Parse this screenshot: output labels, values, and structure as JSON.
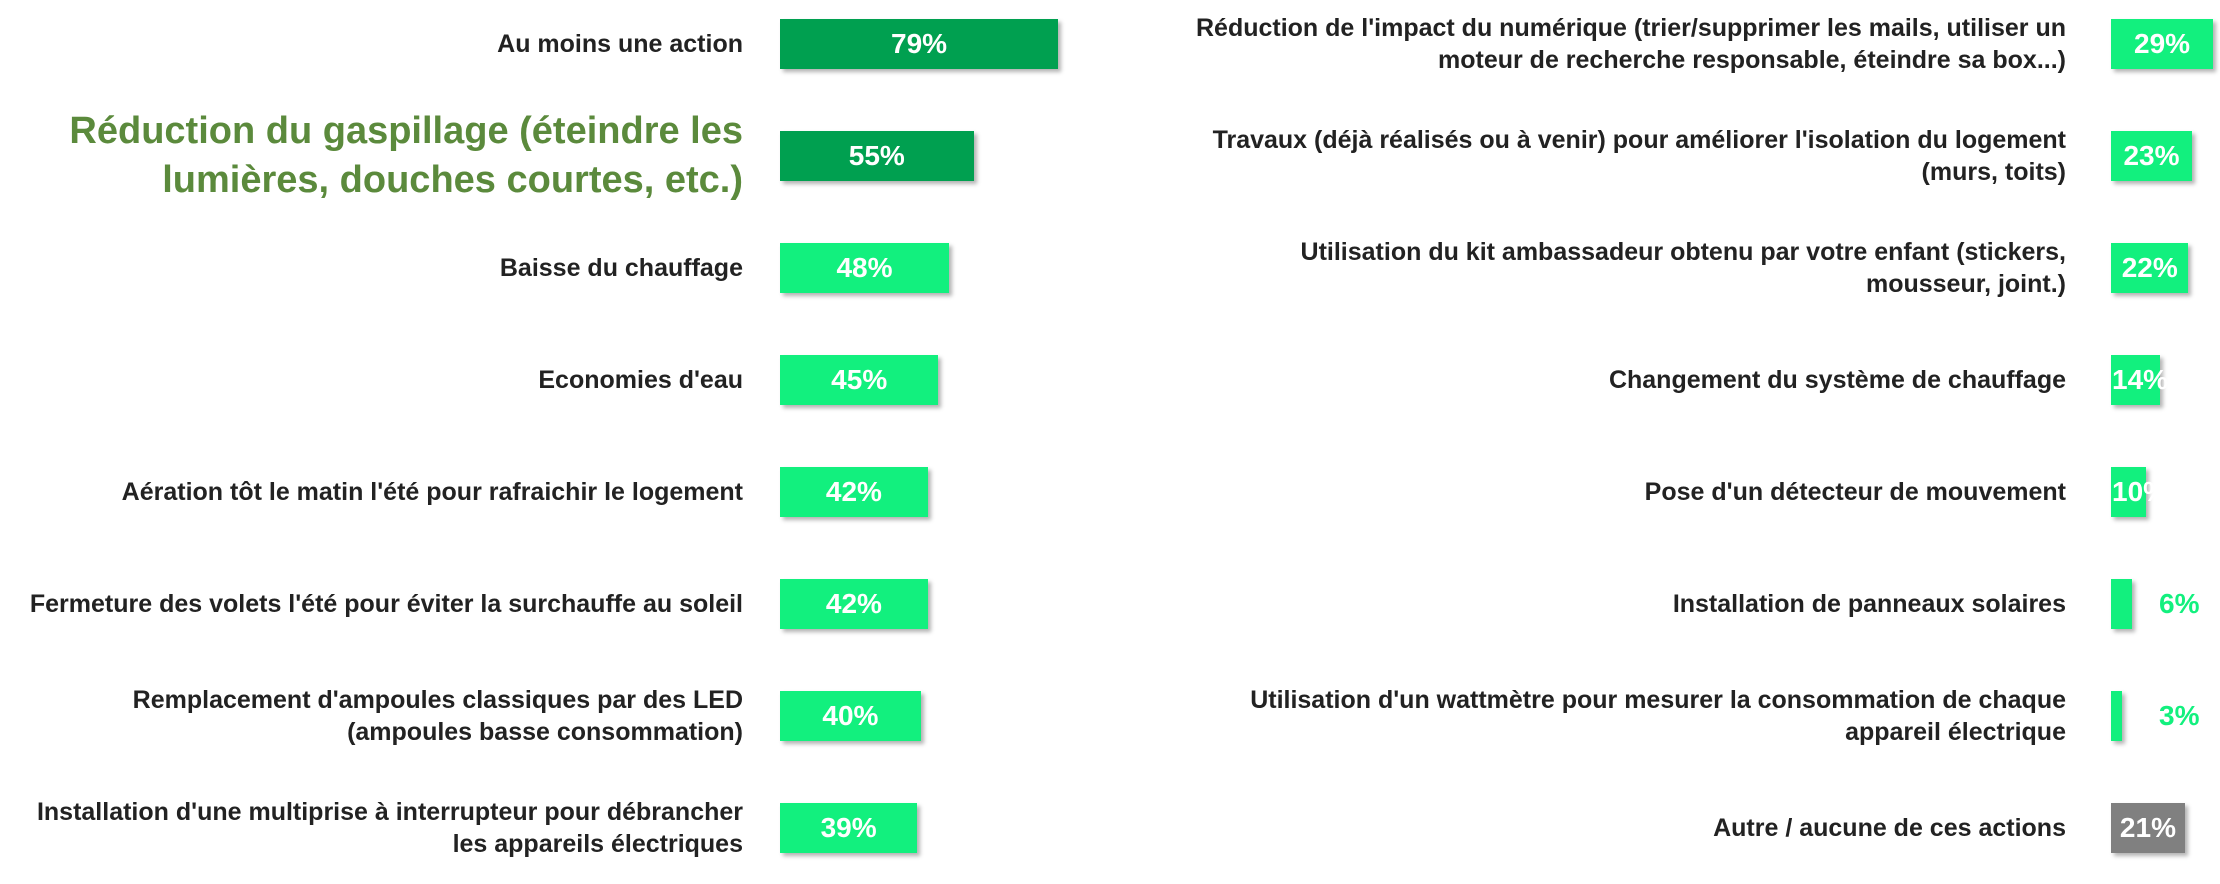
{
  "chart_data": [
    {
      "type": "barh",
      "categories": [
        "Au moins une action",
        "Réduction du gaspillage (éteindre les lumières, douches courtes, etc.)",
        "Baisse du chauffage",
        "Economies d'eau",
        "Aération tôt le matin l'été pour rafraichir le logement",
        "Fermeture des volets l'été pour éviter la surchauffe au soleil",
        "Remplacement d'ampoules classiques par des LED (ampoules basse consommation)",
        "Installation d'une multiprise à interrupteur pour débrancher les appareils électriques"
      ],
      "values": [
        79,
        55,
        48,
        45,
        42,
        42,
        40,
        39
      ],
      "value_labels": [
        "79%",
        "55%",
        "48%",
        "45%",
        "42%",
        "42%",
        "40%",
        "39%"
      ],
      "colors": [
        "#00a050",
        "#00a050",
        "#12f07e",
        "#12f07e",
        "#12f07e",
        "#12f07e",
        "#12f07e",
        "#12f07e"
      ],
      "label_highlight": 1,
      "label_highlight_color": "#5b8a3c"
    },
    {
      "type": "barh",
      "categories": [
        "Réduction de l'impact du numérique (trier/supprimer les mails, utiliser un moteur de recherche responsable, éteindre sa box...)",
        "Travaux (déjà réalisés ou à venir) pour améliorer l'isolation du logement (murs, toits)",
        "Utilisation du kit ambassadeur obtenu par votre enfant (stickers, mousseur, joint.)",
        "Changement du système de chauffage",
        "Pose d'un détecteur de mouvement",
        "Installation de panneaux solaires",
        "Utilisation d'un wattmètre pour mesurer la consommation de chaque appareil électrique",
        "Autre / aucune de ces actions"
      ],
      "values": [
        29,
        23,
        22,
        14,
        10,
        6,
        3,
        21
      ],
      "value_labels": [
        "29%",
        "23%",
        "22%",
        "14%",
        "10%",
        "6%",
        "3%",
        "21%"
      ],
      "colors": [
        "#12f07e",
        "#12f07e",
        "#12f07e",
        "#12f07e",
        "#12f07e",
        "#12f07e",
        "#12f07e",
        "#808080"
      ]
    }
  ]
}
